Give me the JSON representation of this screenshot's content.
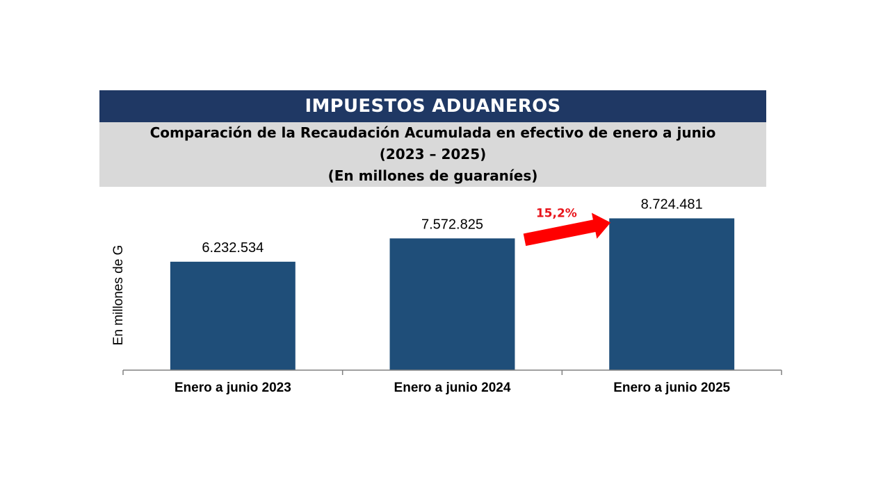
{
  "header": {
    "title": "IMPUESTOS ADUANEROS",
    "subtitle_line1": "Comparación de la Recaudación Acumulada en efectivo de enero a junio",
    "subtitle_line2": "(2023 – 2025)",
    "subtitle_line3": "(En millones de guaraníes)"
  },
  "colors": {
    "banner": "#1f3864",
    "subtitle_bg": "#d9d9d9",
    "bar": "#1f4e79",
    "arrow": "#ff0000"
  },
  "chart_data": {
    "type": "bar",
    "title": "Comparación de la Recaudación Acumulada en efectivo de enero a junio",
    "categories": [
      "Enero a junio 2023",
      "Enero a junio 2024",
      "Enero a junio 2025"
    ],
    "values": [
      6232534,
      7572825,
      8724481
    ],
    "value_labels": [
      "6.232.534",
      "7.572.825",
      "8.724.481"
    ],
    "xlabel": "",
    "ylabel": "En millones de G",
    "ylim": [
      0,
      9700000
    ],
    "grid": false,
    "annotation": {
      "text": "15,2%",
      "from_category": "Enero a junio 2024",
      "to_category": "Enero a junio 2025",
      "shape": "arrow"
    }
  }
}
